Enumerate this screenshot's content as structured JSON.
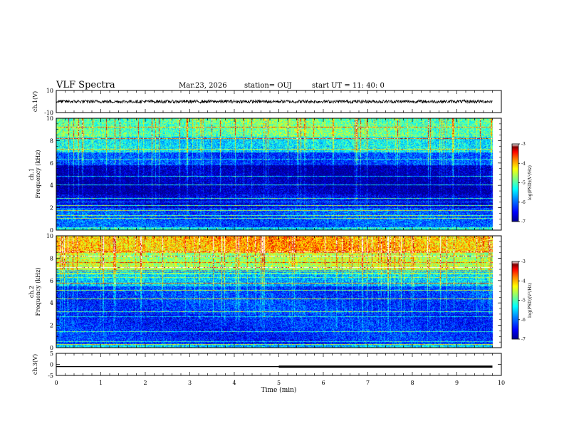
{
  "header": {
    "title": "VLF Spectra",
    "date": "Mar.23, 2026",
    "station": "station= OUJ",
    "start": "start  UT =   11: 40: 0"
  },
  "chart_data": [
    {
      "type": "line",
      "ylabel": "ch.1(V)",
      "ylim": [
        -10,
        10
      ],
      "yticks": [
        "10",
        "-10"
      ],
      "xlim": [
        0,
        10
      ],
      "series": [
        {
          "values": "noisy waveform centred near 0 V, amplitude about ±1.5 V",
          "mean": 0,
          "amplitude": 1.5
        }
      ],
      "grid": false
    },
    {
      "type": "heatmap",
      "ylabel": "ch.1\nFrequency (kHz)",
      "ylim": [
        0,
        10
      ],
      "yticks": [
        "0",
        "2",
        "4",
        "6",
        "8",
        "10"
      ],
      "xlim": [
        0,
        10
      ],
      "data_end_min": 9.8,
      "colorbar": {
        "label": "log(PSD)(V²/Hz)",
        "range": [
          -7,
          -3
        ],
        "ticks": [
          "-3",
          "-4",
          "-5",
          "-6",
          "-7"
        ]
      },
      "bands": [
        {
          "from": 0,
          "to": 0.3,
          "level": -5.3
        },
        {
          "from": 0.3,
          "to": 2.0,
          "level": -6.1
        },
        {
          "from": 2.0,
          "to": 3.2,
          "level": -6.6
        },
        {
          "from": 3.2,
          "to": 5.8,
          "level": -6.9
        },
        {
          "from": 5.8,
          "to": 7.0,
          "level": -6.2
        },
        {
          "from": 7.0,
          "to": 8.4,
          "level": -5.4
        },
        {
          "from": 8.4,
          "to": 10.0,
          "level": -4.9
        }
      ],
      "grid": false
    },
    {
      "type": "heatmap",
      "ylabel": "ch.2\nFrequency (kHz)",
      "ylim": [
        0,
        10
      ],
      "yticks": [
        "0",
        "2",
        "4",
        "6",
        "8",
        "10"
      ],
      "xlim": [
        0,
        10
      ],
      "data_end_min": 9.8,
      "colorbar": {
        "label": "log(PSD)(V²/Hz)",
        "range": [
          -7,
          -3
        ],
        "ticks": [
          "-3",
          "-4",
          "-5",
          "-6",
          "-7"
        ]
      },
      "bands": [
        {
          "from": 0,
          "to": 0.3,
          "level": -5.6
        },
        {
          "from": 0.3,
          "to": 3.0,
          "level": -6.3
        },
        {
          "from": 3.0,
          "to": 5.5,
          "level": -6.2
        },
        {
          "from": 5.5,
          "to": 7.0,
          "level": -5.6
        },
        {
          "from": 7.0,
          "to": 8.5,
          "level": -4.6
        },
        {
          "from": 8.5,
          "to": 10.0,
          "level": -4.0
        }
      ],
      "grid": false
    },
    {
      "type": "line",
      "ylabel": "ch.3(V)",
      "ylim": [
        -5,
        5
      ],
      "yticks": [
        "5",
        "0",
        "-5"
      ],
      "xlim": [
        0,
        10
      ],
      "series": [
        {
          "values": [
            {
              "x_from": 0,
              "x_to": 5,
              "y": -1,
              "width": "thin"
            },
            {
              "x_from": 5,
              "x_to": 9.8,
              "y": -1,
              "width": "thick"
            }
          ]
        }
      ],
      "grid": false
    }
  ],
  "xaxis": {
    "label": "Time  (min)",
    "ticks": [
      "0",
      "1",
      "2",
      "3",
      "4",
      "5",
      "6",
      "7",
      "8",
      "9",
      "10"
    ]
  },
  "colors": {
    "colormap": [
      "#00008f",
      "#0000ff",
      "#0080ff",
      "#00ffff",
      "#80ff80",
      "#ffff00",
      "#ff8000",
      "#ff0000",
      "#800000",
      "#ffffff"
    ]
  }
}
